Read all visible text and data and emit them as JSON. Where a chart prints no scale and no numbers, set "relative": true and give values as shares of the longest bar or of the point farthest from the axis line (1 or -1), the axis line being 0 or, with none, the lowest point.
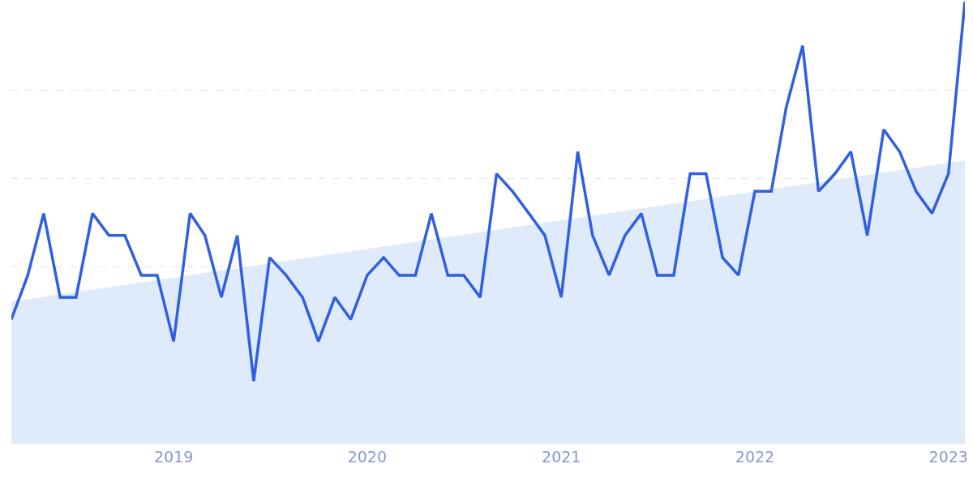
{
  "chart_data": {
    "type": "line",
    "relative": true,
    "grid": "y",
    "marker": "none",
    "line_style": "solid",
    "x": [
      "2018-03",
      "2018-04",
      "2018-05",
      "2018-06",
      "2018-07",
      "2018-08",
      "2018-09",
      "2018-10",
      "2018-11",
      "2018-12",
      "2019-01",
      "2019-02",
      "2019-03",
      "2019-04",
      "2019-05",
      "2019-06",
      "2019-07",
      "2019-08",
      "2019-09",
      "2019-10",
      "2019-11",
      "2019-12",
      "2020-01",
      "2020-02",
      "2020-03",
      "2020-04",
      "2020-05",
      "2020-06",
      "2020-07",
      "2020-08",
      "2020-09",
      "2020-10",
      "2020-11",
      "2020-12",
      "2021-01",
      "2021-02",
      "2021-03",
      "2021-04",
      "2021-05",
      "2021-06",
      "2021-07",
      "2021-08",
      "2021-09",
      "2021-10",
      "2021-11",
      "2021-12",
      "2022-01",
      "2022-02",
      "2022-03",
      "2022-04",
      "2022-05",
      "2022-06",
      "2022-07",
      "2022-08",
      "2022-09",
      "2022-10",
      "2022-11",
      "2022-12",
      "2023-01",
      "2023-02"
    ],
    "xlim": [
      "2018-03",
      "2023-02"
    ],
    "xticks": [
      {
        "value": "2019-01",
        "label": "2019"
      },
      {
        "value": "2020-01",
        "label": "2020"
      },
      {
        "value": "2021-01",
        "label": "2021"
      },
      {
        "value": "2022-01",
        "label": "2022"
      },
      {
        "value": "2023-01",
        "label": "2023"
      }
    ],
    "series": [
      {
        "type": "area",
        "color": "#dfeafb",
        "x": [
          "2018-03",
          "2023-02"
        ],
        "values": [
          0.32,
          0.64
        ]
      },
      {
        "color": "#3060e0",
        "values": [
          0.28,
          0.38,
          0.52,
          0.33,
          0.33,
          0.52,
          0.47,
          0.47,
          0.38,
          0.38,
          0.23,
          0.52,
          0.47,
          0.33,
          0.47,
          0.14,
          0.42,
          0.38,
          0.33,
          0.23,
          0.33,
          0.28,
          0.38,
          0.42,
          0.38,
          0.38,
          0.52,
          0.38,
          0.38,
          0.33,
          0.61,
          0.57,
          0.52,
          0.47,
          0.33,
          0.66,
          0.47,
          0.38,
          0.47,
          0.52,
          0.38,
          0.38,
          0.61,
          0.61,
          0.42,
          0.38,
          0.57,
          0.57,
          0.76,
          0.9,
          0.57,
          0.61,
          0.66,
          0.47,
          0.71,
          0.66,
          0.57,
          0.52,
          0.61,
          1.0
        ]
      }
    ]
  }
}
